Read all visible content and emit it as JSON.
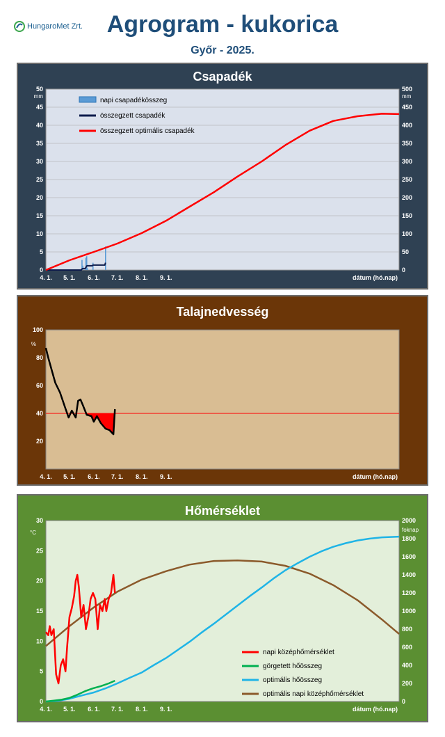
{
  "header": {
    "logo_text": "HungaroMet Zrt.",
    "title": "Agrogram - kukorica",
    "subtitle": "Győr - 2025."
  },
  "x_axis": {
    "ticks": [
      "4. 1.",
      "5. 1.",
      "6. 1.",
      "7. 1.",
      "8. 1.",
      "9. 1."
    ],
    "label": "dátum (hó.nap)"
  },
  "chart_data": [
    {
      "type": "bar",
      "title": "Csapadék",
      "bg": "#2f4153",
      "plot_bg": "#dbe1ec",
      "y_left": {
        "unit": "mm",
        "range": [
          0,
          50
        ],
        "ticks": [
          "0",
          "5",
          "10",
          "15",
          "20",
          "25",
          "30",
          "35",
          "40",
          "45",
          "50"
        ]
      },
      "y_right": {
        "unit": "mm",
        "range": [
          0,
          500
        ],
        "ticks": [
          "0",
          "50",
          "100",
          "150",
          "200",
          "250",
          "300",
          "350",
          "400",
          "450",
          "500"
        ]
      },
      "legend": [
        "napi csapadékösszeg",
        "összegzett csapadék",
        "összegzett optimális csapadék"
      ],
      "daily_precip": {
        "name": "napi csapadékösszeg",
        "color": "#5b9bd5",
        "points": [
          [
            46,
            2.8
          ],
          [
            47,
            1.2
          ],
          [
            51,
            3.4
          ],
          [
            52,
            3.8
          ],
          [
            53,
            0.5
          ],
          [
            60,
            2.0
          ],
          [
            76,
            6.5
          ]
        ]
      },
      "cumulative_precip": {
        "name": "összegzett csapadék",
        "color": "#0d1b4b",
        "points": [
          [
            0,
            0
          ],
          [
            45,
            0
          ],
          [
            46,
            2.8
          ],
          [
            47,
            4
          ],
          [
            50,
            4
          ],
          [
            51,
            7.4
          ],
          [
            52,
            11.2
          ],
          [
            53,
            11.7
          ],
          [
            59,
            11.7
          ],
          [
            60,
            13.7
          ],
          [
            75,
            13.7
          ],
          [
            76,
            20.2
          ]
        ]
      },
      "cumulative_optimal": {
        "name": "összegzett optimális csapadék",
        "color": "#ff0000",
        "points": [
          [
            0,
            0
          ],
          [
            30,
            27
          ],
          [
            61,
            50
          ],
          [
            91,
            73
          ],
          [
            122,
            102
          ],
          [
            153,
            136
          ],
          [
            183,
            175
          ],
          [
            214,
            215
          ],
          [
            244,
            258
          ],
          [
            275,
            300
          ],
          [
            305,
            345
          ],
          [
            336,
            385
          ],
          [
            366,
            412
          ],
          [
            397,
            425
          ],
          [
            428,
            432
          ],
          [
            450,
            431
          ]
        ]
      }
    },
    {
      "type": "line",
      "title": "Talajnedvesség",
      "bg": "#6b3608",
      "plot_bg": "#d9bd93",
      "y_left": {
        "unit": "%",
        "range": [
          0,
          100
        ],
        "ticks": [
          "20",
          "40",
          "60",
          "80",
          "100"
        ]
      },
      "threshold": 40,
      "soil_moisture": {
        "color": "#000000",
        "points": [
          [
            0,
            87
          ],
          [
            3,
            80
          ],
          [
            8,
            70
          ],
          [
            12,
            62
          ],
          [
            18,
            55
          ],
          [
            24,
            45
          ],
          [
            29,
            37
          ],
          [
            33,
            42
          ],
          [
            38,
            37
          ],
          [
            41,
            49
          ],
          [
            44,
            50
          ],
          [
            47,
            46
          ],
          [
            52,
            39
          ],
          [
            58,
            38
          ],
          [
            61,
            34
          ],
          [
            65,
            38
          ],
          [
            70,
            33
          ],
          [
            76,
            29
          ],
          [
            81,
            28
          ],
          [
            86,
            25
          ],
          [
            88,
            43
          ]
        ]
      }
    },
    {
      "type": "line",
      "title": "Hőmérséklet",
      "bg": "#5b8f32",
      "plot_bg": "#e3efda",
      "y_left": {
        "unit": "°C",
        "range": [
          0,
          30
        ],
        "ticks": [
          "0",
          "5",
          "10",
          "15",
          "20",
          "25",
          "30"
        ]
      },
      "y_right": {
        "unit": "foknap",
        "range": [
          0,
          2000
        ],
        "ticks": [
          "0",
          "200",
          "400",
          "600",
          "800",
          "1000",
          "1200",
          "1400",
          "1600",
          "1800",
          "2000"
        ]
      },
      "legend": [
        "napi középhőmérséklet",
        "görgetett hőösszeg",
        "optimális hőösszeg",
        "optimális napi középhőmérséklet"
      ],
      "daily_mean_temp": {
        "name": "napi középhőmérséklet",
        "color": "#ff0000",
        "points": [
          [
            0,
            11.5
          ],
          [
            3,
            11
          ],
          [
            5,
            12.5
          ],
          [
            7,
            11
          ],
          [
            10,
            12
          ],
          [
            13,
            4.5
          ],
          [
            16,
            3
          ],
          [
            19,
            6
          ],
          [
            22,
            7
          ],
          [
            25,
            5
          ],
          [
            27,
            9
          ],
          [
            30,
            14
          ],
          [
            33,
            15.5
          ],
          [
            36,
            17.5
          ],
          [
            38,
            20
          ],
          [
            40,
            21
          ],
          [
            42,
            19
          ],
          [
            45,
            14
          ],
          [
            48,
            16
          ],
          [
            51,
            12
          ],
          [
            54,
            14
          ],
          [
            57,
            17
          ],
          [
            60,
            18
          ],
          [
            63,
            17
          ],
          [
            66,
            12
          ],
          [
            69,
            16
          ],
          [
            72,
            15
          ],
          [
            75,
            17
          ],
          [
            77,
            15
          ],
          [
            80,
            17
          ],
          [
            83,
            18
          ],
          [
            86,
            21
          ],
          [
            88,
            18
          ]
        ]
      },
      "rolling_heat_sum": {
        "name": "görgetett hőösszeg",
        "color": "#00b050",
        "points": [
          [
            0,
            0
          ],
          [
            10,
            10
          ],
          [
            20,
            20
          ],
          [
            30,
            40
          ],
          [
            40,
            75
          ],
          [
            50,
            115
          ],
          [
            60,
            145
          ],
          [
            70,
            170
          ],
          [
            80,
            200
          ],
          [
            88,
            230
          ]
        ]
      },
      "optimal_heat_sum": {
        "name": "optimális hőösszeg",
        "color": "#1fb4e6",
        "points": [
          [
            0,
            0
          ],
          [
            15,
            8
          ],
          [
            30,
            30
          ],
          [
            45,
            65
          ],
          [
            61,
            100
          ],
          [
            76,
            145
          ],
          [
            91,
            200
          ],
          [
            106,
            260
          ],
          [
            122,
            320
          ],
          [
            137,
            400
          ],
          [
            153,
            480
          ],
          [
            168,
            570
          ],
          [
            183,
            660
          ],
          [
            198,
            760
          ],
          [
            214,
            860
          ],
          [
            229,
            960
          ],
          [
            244,
            1060
          ],
          [
            259,
            1160
          ],
          [
            275,
            1260
          ],
          [
            290,
            1360
          ],
          [
            305,
            1450
          ],
          [
            321,
            1530
          ],
          [
            336,
            1600
          ],
          [
            351,
            1660
          ],
          [
            366,
            1710
          ],
          [
            382,
            1750
          ],
          [
            397,
            1780
          ],
          [
            412,
            1800
          ],
          [
            428,
            1815
          ],
          [
            450,
            1822
          ]
        ]
      },
      "optimal_daily_temp": {
        "name": "optimális napi középhőmérséklet",
        "color": "#8b5a2b",
        "points": [
          [
            0,
            9.2
          ],
          [
            30,
            12.5
          ],
          [
            61,
            15.6
          ],
          [
            91,
            18.2
          ],
          [
            122,
            20.2
          ],
          [
            153,
            21.6
          ],
          [
            183,
            22.7
          ],
          [
            214,
            23.3
          ],
          [
            244,
            23.4
          ],
          [
            275,
            23.2
          ],
          [
            305,
            22.5
          ],
          [
            336,
            21.2
          ],
          [
            366,
            19.3
          ],
          [
            397,
            16.8
          ],
          [
            428,
            13.6
          ],
          [
            450,
            11.2
          ]
        ]
      }
    }
  ]
}
